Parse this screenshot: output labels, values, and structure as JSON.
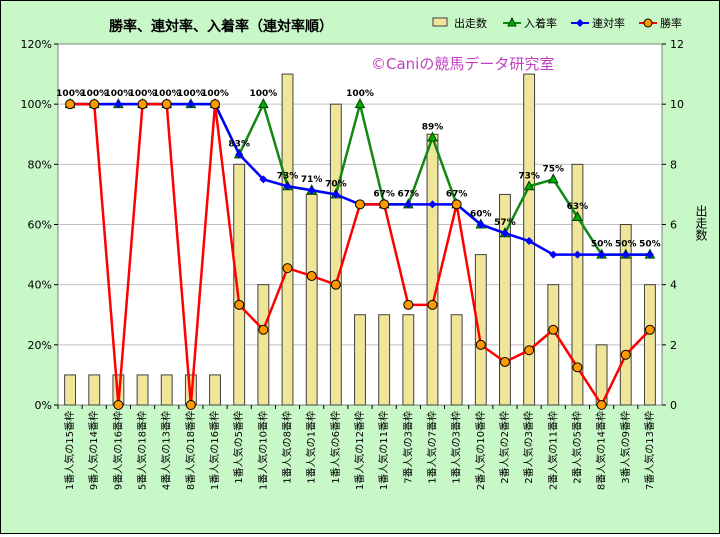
{
  "chart_data": {
    "type": "bar+line",
    "title": "勝率、連対率、入着率（連対率順）",
    "watermark": "©Caniの競馬データ研究室",
    "y2label": "出走数",
    "categories": [
      "1番人気の15番枠",
      "9番人気の14番枠",
      "9番人気の16番枠",
      "5番人気の18番枠",
      "4番人気の13番枠",
      "8番人気の18番枠",
      "1番人気の16番枠",
      "1番人気の5番枠",
      "1番人気の10番枠",
      "1番人気の8番枠",
      "1番人気の1番枠",
      "1番人気の6番枠",
      "1番人気の12番枠",
      "1番人気の11番枠",
      "7番人気の3番枠",
      "1番人気の7番枠",
      "1番人気の3番枠",
      "2番人気の10番枠",
      "2番人気の2番枠",
      "2番人気の3番枠",
      "2番人気の11番枠",
      "2番人気の5番枠",
      "8番人気の14番枠",
      "3番人気の9番枠",
      "7番人気の13番枠"
    ],
    "series": [
      {
        "name": "出走数",
        "type": "bar",
        "axis": "right",
        "color": "#efe69a",
        "values": [
          1,
          1,
          1,
          1,
          1,
          1,
          1,
          8,
          4,
          11,
          7,
          10,
          3,
          3,
          3,
          9,
          3,
          5,
          7,
          11,
          4,
          8,
          2,
          6,
          4
        ]
      },
      {
        "name": "入着率",
        "type": "line",
        "axis": "left",
        "color": "#118811",
        "marker": "triangle",
        "values": [
          1.0,
          1.0,
          1.0,
          1.0,
          1.0,
          1.0,
          1.0,
          0.833,
          1.0,
          0.727,
          0.714,
          0.7,
          1.0,
          0.667,
          0.667,
          0.889,
          0.667,
          0.6,
          0.571,
          0.727,
          0.75,
          0.625,
          0.5,
          0.5,
          0.5
        ]
      },
      {
        "name": "連対率",
        "type": "line",
        "axis": "left",
        "color": "#0000ff",
        "marker": "diamond",
        "values": [
          1.0,
          1.0,
          1.0,
          1.0,
          1.0,
          1.0,
          1.0,
          0.833,
          0.75,
          0.727,
          0.714,
          0.7,
          0.667,
          0.667,
          0.667,
          0.667,
          0.667,
          0.6,
          0.571,
          0.545,
          0.5,
          0.5,
          0.5,
          0.5,
          0.5
        ]
      },
      {
        "name": "勝率",
        "type": "line",
        "axis": "left",
        "color": "#ff0000",
        "marker": "circle",
        "values": [
          1.0,
          1.0,
          0.0,
          1.0,
          1.0,
          0.0,
          1.0,
          0.333,
          0.25,
          0.455,
          0.429,
          0.4,
          0.667,
          0.667,
          0.333,
          0.333,
          0.667,
          0.2,
          0.143,
          0.182,
          0.25,
          0.125,
          0.0,
          0.167,
          0.25
        ]
      }
    ],
    "data_labels": [
      "100%",
      "100%",
      "100%",
      "100%",
      "100%",
      "100%",
      "100%",
      "83%",
      "100%",
      "73%",
      "71%",
      "70%",
      "100%",
      "67%",
      "67%",
      "89%",
      "67%",
      "60%",
      "57%",
      "73%",
      "75%",
      "63%",
      "50%",
      "50%",
      "50%"
    ],
    "yticks": [
      "0%",
      "20%",
      "40%",
      "60%",
      "80%",
      "100%",
      "120%"
    ],
    "y2ticks": [
      "0",
      "2",
      "4",
      "6",
      "8",
      "10",
      "12"
    ],
    "ylim": [
      0,
      1.2
    ],
    "y2lim": [
      0,
      12
    ],
    "grid": true,
    "legend_position": "top-right"
  }
}
